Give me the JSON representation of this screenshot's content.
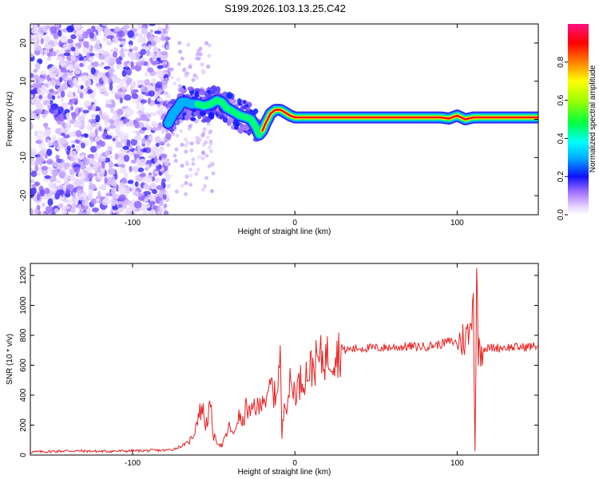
{
  "figure_title": "S199.2026.103.13.25.C42",
  "chart_data": [
    {
      "type": "heatmap",
      "title": "S199.2026.103.13.25.C42",
      "xlabel": "Height of straight line (km)",
      "ylabel": "Frequency (Hz)",
      "xlim": [
        -163,
        150
      ],
      "ylim": [
        -25,
        25
      ],
      "xticks": [
        -100,
        0,
        100
      ],
      "yticks": [
        -20,
        -10,
        0,
        10,
        20
      ],
      "colorbar": {
        "label": "Normalized spectral amplitude",
        "range": [
          0,
          1
        ],
        "ticks": [
          0.0,
          0.2,
          0.4,
          0.6,
          0.8
        ],
        "tick_labels": [
          "0.0",
          "0.2",
          "0.4",
          "0.6",
          "0.8"
        ]
      },
      "description_regions": [
        {
          "region": "noise",
          "x_range": [
            -163,
            -78
          ],
          "freq_range": [
            -25,
            25
          ],
          "amplitude": 0.1
        },
        {
          "region": "transition",
          "x_range": [
            -78,
            -20
          ],
          "freq_center": [
            0,
            3,
            5,
            4,
            2,
            -2
          ],
          "amplitude": 0.3
        },
        {
          "region": "signal",
          "x_range": [
            -20,
            150
          ],
          "freq_center": 0.5,
          "amplitude": 0.9
        }
      ],
      "ridge": {
        "x": [
          -78,
          -75,
          -72,
          -70,
          -67,
          -64,
          -60,
          -56,
          -52,
          -48,
          -45,
          -42,
          -38,
          -34,
          -30,
          -27,
          -24,
          -22,
          -20,
          -18,
          -15,
          -12,
          -9,
          -6,
          -3,
          0,
          5,
          10,
          30,
          60,
          90,
          95,
          100,
          105,
          110,
          120,
          150
        ],
        "freq": [
          -1,
          1.5,
          3,
          4.5,
          4.5,
          4,
          4,
          3.5,
          4,
          5,
          4.5,
          3,
          2,
          1,
          0.5,
          0,
          -2,
          -4,
          -3,
          -1,
          1.5,
          2.5,
          2.5,
          1.8,
          1,
          0.5,
          0.5,
          0.5,
          0.5,
          0.5,
          0.5,
          0.2,
          1,
          0,
          0.5,
          0.5,
          0.5
        ]
      }
    },
    {
      "type": "line",
      "xlabel": "Height of straight line (km)",
      "ylabel": "SNR (10 * v/v)",
      "xlim": [
        -163,
        150
      ],
      "ylim": [
        0,
        1280
      ],
      "xticks": [
        -100,
        0,
        100
      ],
      "yticks": [
        0,
        200,
        400,
        600,
        800,
        1000,
        1200
      ],
      "series": [
        {
          "name": "SNR",
          "color": "#e82020",
          "x": [
            -163,
            -140,
            -120,
            -100,
            -90,
            -80,
            -75,
            -70,
            -65,
            -62,
            -60,
            -57,
            -55,
            -52,
            -50,
            -47,
            -45,
            -42,
            -40,
            -38,
            -35,
            -32,
            -30,
            -27,
            -25,
            -22,
            -20,
            -17,
            -15,
            -12,
            -10,
            -9,
            -8,
            -6,
            -5,
            -3,
            0,
            5,
            10,
            15,
            20,
            25,
            30,
            40,
            50,
            60,
            70,
            80,
            90,
            95,
            100,
            105,
            108,
            110,
            111,
            112,
            113,
            115,
            120,
            130,
            140,
            150
          ],
          "y": [
            20,
            28,
            25,
            28,
            30,
            32,
            38,
            60,
            90,
            150,
            250,
            320,
            200,
            320,
            120,
            80,
            60,
            140,
            200,
            120,
            260,
            210,
            320,
            260,
            340,
            300,
            420,
            340,
            480,
            380,
            560,
            640,
            120,
            420,
            350,
            470,
            430,
            520,
            580,
            640,
            660,
            680,
            700,
            715,
            715,
            720,
            725,
            725,
            740,
            760,
            750,
            780,
            820,
            1100,
            30,
            1200,
            720,
            710,
            715,
            720,
            720,
            730
          ],
          "noise_amplitude_note": "trace is highly jagged; values are approximate envelope centers"
        }
      ]
    }
  ]
}
